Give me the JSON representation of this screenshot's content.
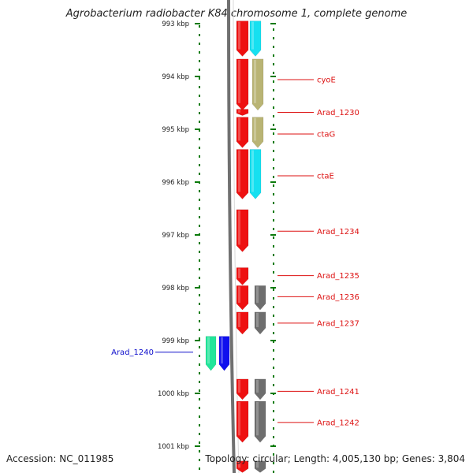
{
  "title": "Agrobacterium radiobacter K84 chromosome 1, complete genome",
  "accession": "Accession: NC_011985",
  "summary": "Topology: circular; Length: 4,005,130 bp; Genes: 3,804",
  "colors": {
    "backbone": "#707070",
    "tick": "#0a7a0a",
    "gene_red": "#ee1111",
    "gene_cyan": "#16e0f0",
    "gene_khaki": "#b9b474",
    "gene_gray": "#6e6e6e",
    "gene_green": "#22e59a",
    "gene_blue": "#1010ee",
    "label_red": "#dd1111",
    "label_blue": "#1010cc"
  },
  "scale": {
    "ticks": [
      {
        "kbp": 993,
        "label": "993 kbp"
      },
      {
        "kbp": 994,
        "label": "994 kbp"
      },
      {
        "kbp": 995,
        "label": "995 kbp"
      },
      {
        "kbp": 996,
        "label": "996 kbp"
      },
      {
        "kbp": 997,
        "label": "997 kbp"
      },
      {
        "kbp": 998,
        "label": "998 kbp"
      },
      {
        "kbp": 999,
        "label": "999 kbp"
      },
      {
        "kbp": 1000,
        "label": "1000 kbp"
      },
      {
        "kbp": 1001,
        "label": "1001 kbp"
      }
    ]
  },
  "genes": [
    {
      "track": "red",
      "start": 992.95,
      "end": 993.62,
      "strand": "+"
    },
    {
      "track": "cyan",
      "start": 992.95,
      "end": 993.62,
      "strand": "+"
    },
    {
      "track": "red",
      "start": 993.67,
      "end": 994.64,
      "strand": "+"
    },
    {
      "track": "khaki",
      "start": 993.67,
      "end": 994.64,
      "strand": "+"
    },
    {
      "track": "red",
      "start": 994.62,
      "end": 994.74,
      "strand": "+"
    },
    {
      "track": "red",
      "start": 994.77,
      "end": 995.35,
      "strand": "+"
    },
    {
      "track": "khaki",
      "start": 994.77,
      "end": 995.35,
      "strand": "+"
    },
    {
      "track": "red",
      "start": 995.38,
      "end": 996.32,
      "strand": "+"
    },
    {
      "track": "cyan",
      "start": 995.38,
      "end": 996.32,
      "strand": "+"
    },
    {
      "track": "red",
      "start": 996.52,
      "end": 997.32,
      "strand": "+"
    },
    {
      "track": "red",
      "start": 997.62,
      "end": 997.95,
      "strand": "+"
    },
    {
      "track": "red",
      "start": 997.96,
      "end": 998.42,
      "strand": "+"
    },
    {
      "track": "gray",
      "start": 997.96,
      "end": 998.42,
      "strand": "+"
    },
    {
      "track": "red",
      "start": 998.46,
      "end": 998.88,
      "strand": "+"
    },
    {
      "track": "gray",
      "start": 998.46,
      "end": 998.88,
      "strand": "+"
    },
    {
      "track": "green",
      "start": 998.92,
      "end": 999.57,
      "strand": "+"
    },
    {
      "track": "blue",
      "start": 998.92,
      "end": 999.57,
      "strand": "+"
    },
    {
      "track": "red",
      "start": 999.73,
      "end": 1000.12,
      "strand": "+"
    },
    {
      "track": "gray",
      "start": 999.73,
      "end": 1000.12,
      "strand": "+"
    },
    {
      "track": "red",
      "start": 1000.15,
      "end": 1000.93,
      "strand": "+"
    },
    {
      "track": "gray",
      "start": 1000.15,
      "end": 1000.93,
      "strand": "+"
    },
    {
      "track": "red",
      "start": 1001.28,
      "end": 1001.5,
      "strand": "+"
    },
    {
      "track": "gray",
      "start": 1001.28,
      "end": 1001.5,
      "strand": "+"
    }
  ],
  "labels": [
    {
      "text": "cyoE",
      "kbp": 994.06,
      "side": "right",
      "color": "red"
    },
    {
      "text": "Arad_1230",
      "kbp": 994.68,
      "side": "right",
      "color": "red"
    },
    {
      "text": "ctaG",
      "kbp": 995.09,
      "side": "right",
      "color": "red"
    },
    {
      "text": "ctaE",
      "kbp": 995.88,
      "side": "right",
      "color": "red"
    },
    {
      "text": "Arad_1234",
      "kbp": 996.93,
      "side": "right",
      "color": "red"
    },
    {
      "text": "Arad_1235",
      "kbp": 997.77,
      "side": "right",
      "color": "red"
    },
    {
      "text": "Arad_1236",
      "kbp": 998.17,
      "side": "right",
      "color": "red"
    },
    {
      "text": "Arad_1237",
      "kbp": 998.67,
      "side": "right",
      "color": "red"
    },
    {
      "text": "Arad_1240",
      "kbp": 999.22,
      "side": "left",
      "color": "blue"
    },
    {
      "text": "Arad_1241",
      "kbp": 999.96,
      "side": "right",
      "color": "red"
    },
    {
      "text": "Arad_1242",
      "kbp": 1000.55,
      "side": "right",
      "color": "red"
    }
  ]
}
